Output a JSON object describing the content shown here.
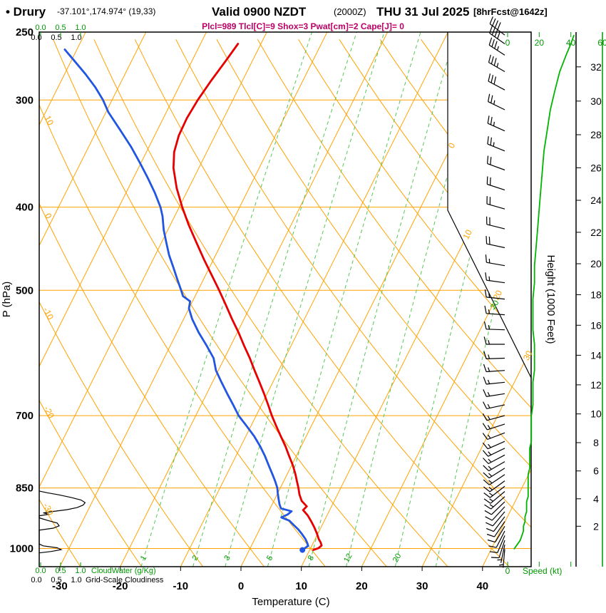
{
  "header": {
    "title_site": "• Drury",
    "coords": "-37.101°,174.974° (19,33)",
    "valid": "Valid 0900 NZDT",
    "valid_z": "(2000Z)",
    "date": "THU 31 Jul 2025",
    "fcst": "[8hrFcst@1642z]",
    "params": "Plcl=989 Tlcl[C]=9 Shox=3 Pwat[cm]=2 Cape[J]= 0"
  },
  "indices": {
    "Plcl": 989,
    "Tlcl_C": 9,
    "Shox": 3,
    "Pwat_cm": 2,
    "Cape_J": 0
  },
  "axes": {
    "pressure_label": "P (hPa)",
    "pressure_ticks": [
      250,
      300,
      400,
      500,
      700,
      850,
      1000
    ],
    "temp_label": "Temperature (C)",
    "temp_ticks": [
      -30,
      -20,
      -10,
      0,
      10,
      20,
      30,
      40
    ],
    "height_label": "Height (1000 Feet)",
    "height_ticks": [
      2,
      4,
      6,
      8,
      10,
      12,
      14,
      16,
      18,
      20,
      22,
      24,
      26,
      28,
      30,
      32
    ],
    "speed_label": "Speed (kt)",
    "speed_ticks": [
      0,
      20,
      40,
      60
    ],
    "cloud_scale_ticks": [
      "0.0",
      "0.5",
      "1.0"
    ],
    "cloudwater_label": "CloudWater (g/Kg)",
    "gridscale_label": "Grid-Scale Cloudiness"
  },
  "grid": {
    "isotherm_step_C": 10,
    "isotherm_labels": [
      0,
      10,
      20,
      30
    ],
    "dry_adiabat_labels": [
      10,
      0,
      -10,
      -20,
      -30
    ],
    "mixing_ratio_values": [
      1,
      2,
      3,
      5,
      8,
      12,
      20,
      30
    ]
  },
  "colors": {
    "orange": "#ffa200",
    "green_light": "#55c855",
    "green_dark": "#009900",
    "green_curve": "#00b400",
    "red": "#e60000",
    "blue": "#2255e0",
    "magenta": "#bb0066"
  },
  "chart_data": {
    "type": "skew-t log-p sounding",
    "station": "Drury",
    "pressure_range_hPa": [
      250,
      1050
    ],
    "temperature_axis_C": [
      -35,
      45
    ],
    "surface_dewpoint_marker": [
      1004,
      8.8
    ],
    "series": [
      {
        "name": "temperature",
        "units": [
          "hPa",
          "C"
        ],
        "color": "#e60000",
        "points": [
          [
            1004,
            10.6
          ],
          [
            999,
            11.3
          ],
          [
            992,
            11.6
          ],
          [
            984,
            11.2
          ],
          [
            975,
            10.6
          ],
          [
            960,
            9.8
          ],
          [
            945,
            8.9
          ],
          [
            930,
            7.9
          ],
          [
            915,
            6.8
          ],
          [
            902,
            5.6
          ],
          [
            893,
            5.9
          ],
          [
            880,
            4.6
          ],
          [
            865,
            3.7
          ],
          [
            850,
            3.0
          ],
          [
            835,
            2.2
          ],
          [
            820,
            1.4
          ],
          [
            800,
            0.2
          ],
          [
            780,
            -1.2
          ],
          [
            760,
            -2.6
          ],
          [
            740,
            -4.2
          ],
          [
            720,
            -5.8
          ],
          [
            700,
            -7.4
          ],
          [
            680,
            -8.9
          ],
          [
            660,
            -10.5
          ],
          [
            640,
            -12.2
          ],
          [
            620,
            -14.0
          ],
          [
            600,
            -15.8
          ],
          [
            580,
            -17.8
          ],
          [
            560,
            -19.8
          ],
          [
            540,
            -22.0
          ],
          [
            520,
            -24.2
          ],
          [
            500,
            -26.5
          ],
          [
            480,
            -29.0
          ],
          [
            460,
            -31.6
          ],
          [
            440,
            -34.2
          ],
          [
            420,
            -36.9
          ],
          [
            400,
            -39.5
          ],
          [
            380,
            -42.0
          ],
          [
            360,
            -44.2
          ],
          [
            345,
            -45.4
          ],
          [
            330,
            -46.0
          ],
          [
            315,
            -46.1
          ],
          [
            300,
            -45.8
          ],
          [
            285,
            -45.2
          ],
          [
            270,
            -44.4
          ],
          [
            258,
            -43.8
          ]
        ]
      },
      {
        "name": "dewpoint",
        "units": [
          "hPa",
          "C"
        ],
        "color": "#2255e0",
        "points": [
          [
            1004,
            8.8
          ],
          [
            1000,
            9.0
          ],
          [
            993,
            9.4
          ],
          [
            985,
            9.0
          ],
          [
            975,
            8.4
          ],
          [
            962,
            7.4
          ],
          [
            950,
            6.4
          ],
          [
            938,
            5.2
          ],
          [
            928,
            4.2
          ],
          [
            920,
            2.6
          ],
          [
            913,
            3.4
          ],
          [
            905,
            3.8
          ],
          [
            898,
            1.8
          ],
          [
            888,
            1.2
          ],
          [
            875,
            0.6
          ],
          [
            862,
            0.0
          ],
          [
            850,
            -0.5
          ],
          [
            835,
            -1.4
          ],
          [
            820,
            -2.4
          ],
          [
            800,
            -3.8
          ],
          [
            780,
            -5.2
          ],
          [
            760,
            -6.8
          ],
          [
            740,
            -8.6
          ],
          [
            720,
            -10.7
          ],
          [
            700,
            -12.9
          ],
          [
            680,
            -14.7
          ],
          [
            660,
            -16.6
          ],
          [
            640,
            -18.5
          ],
          [
            620,
            -20.4
          ],
          [
            600,
            -21.8
          ],
          [
            580,
            -24.0
          ],
          [
            560,
            -26.4
          ],
          [
            540,
            -28.6
          ],
          [
            525,
            -30.0
          ],
          [
            515,
            -30.4
          ],
          [
            508,
            -32.0
          ],
          [
            500,
            -32.8
          ],
          [
            485,
            -34.4
          ],
          [
            470,
            -36.0
          ],
          [
            455,
            -37.7
          ],
          [
            440,
            -39.2
          ],
          [
            425,
            -40.7
          ],
          [
            410,
            -42.0
          ],
          [
            400,
            -43.1
          ],
          [
            385,
            -45.2
          ],
          [
            370,
            -47.6
          ],
          [
            355,
            -50.2
          ],
          [
            340,
            -53.0
          ],
          [
            325,
            -56.2
          ],
          [
            310,
            -59.6
          ],
          [
            300,
            -61.5
          ],
          [
            290,
            -63.8
          ],
          [
            280,
            -66.5
          ],
          [
            270,
            -69.5
          ],
          [
            262,
            -72.0
          ]
        ]
      },
      {
        "name": "wind",
        "units": [
          "hPa",
          "kt",
          "deg"
        ],
        "points": [
          [
            1002,
            4,
            185
          ],
          [
            990,
            6,
            192
          ],
          [
            978,
            8,
            198
          ],
          [
            966,
            9,
            203
          ],
          [
            954,
            10,
            207
          ],
          [
            942,
            10,
            211
          ],
          [
            930,
            11,
            214
          ],
          [
            918,
            11,
            217
          ],
          [
            906,
            12,
            220
          ],
          [
            894,
            12,
            223
          ],
          [
            882,
            12,
            226
          ],
          [
            870,
            13,
            228
          ],
          [
            858,
            13,
            230
          ],
          [
            846,
            13,
            232
          ],
          [
            834,
            13,
            234
          ],
          [
            820,
            13,
            236
          ],
          [
            806,
            14,
            238
          ],
          [
            792,
            14,
            240
          ],
          [
            778,
            14,
            242
          ],
          [
            764,
            14,
            244
          ],
          [
            750,
            15,
            246
          ],
          [
            733,
            15,
            249
          ],
          [
            716,
            15,
            252
          ],
          [
            700,
            15,
            255
          ],
          [
            680,
            16,
            258
          ],
          [
            660,
            16,
            261
          ],
          [
            640,
            16,
            264
          ],
          [
            620,
            17,
            266
          ],
          [
            600,
            17,
            268
          ],
          [
            578,
            17,
            270
          ],
          [
            556,
            16,
            272
          ],
          [
            534,
            16,
            274
          ],
          [
            512,
            16,
            276
          ],
          [
            490,
            17,
            278
          ],
          [
            468,
            17,
            280
          ],
          [
            446,
            18,
            282
          ],
          [
            424,
            19,
            284
          ],
          [
            402,
            20,
            286
          ],
          [
            382,
            21,
            288
          ],
          [
            362,
            22,
            290
          ],
          [
            344,
            23,
            292
          ],
          [
            326,
            25,
            294
          ],
          [
            308,
            27,
            296
          ],
          [
            292,
            30,
            298
          ],
          [
            278,
            33,
            300
          ],
          [
            266,
            37,
            303
          ],
          [
            258,
            40,
            305
          ],
          [
            252,
            42,
            307
          ]
        ]
      },
      {
        "name": "grid_scale_cloudiness",
        "units": [
          "hPa",
          "fraction"
        ],
        "points": [
          [
            1012,
            0.0
          ],
          [
            1008,
            0.3
          ],
          [
            1003,
            0.55
          ],
          [
            998,
            0.45
          ],
          [
            993,
            0.1
          ],
          [
            988,
            0.0
          ],
          [
            952,
            0.0
          ],
          [
            947,
            0.35
          ],
          [
            941,
            0.5
          ],
          [
            934,
            0.45
          ],
          [
            927,
            0.2
          ],
          [
            921,
            0.0
          ],
          [
            916,
            0.0
          ],
          [
            912,
            0.25
          ],
          [
            909,
            0.1
          ],
          [
            906,
            0.3
          ],
          [
            901,
            0.7
          ],
          [
            896,
            0.95
          ],
          [
            890,
            1.1
          ],
          [
            884,
            1.15
          ],
          [
            878,
            1.05
          ],
          [
            872,
            0.8
          ],
          [
            866,
            0.5
          ],
          [
            861,
            0.2
          ],
          [
            857,
            0.0
          ]
        ]
      }
    ]
  }
}
